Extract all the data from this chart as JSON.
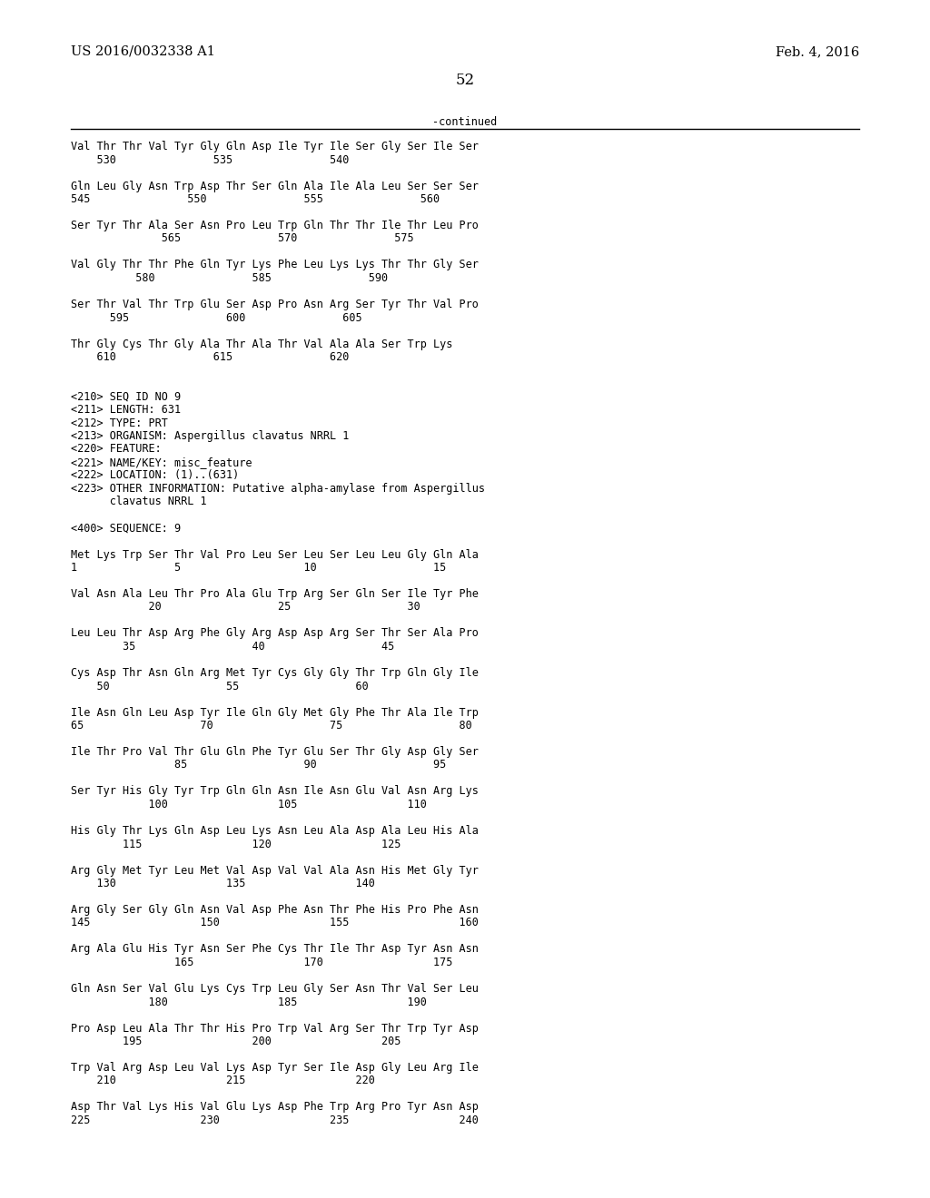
{
  "header_left": "US 2016/0032338 A1",
  "header_right": "Feb. 4, 2016",
  "page_number": "52",
  "continued_label": "-continued",
  "background_color": "#ffffff",
  "text_color": "#000000",
  "font_size_header": 10.5,
  "font_size_body": 8.5,
  "font_size_page": 12,
  "lines": [
    "Val Thr Thr Val Tyr Gly Gln Asp Ile Tyr Ile Ser Gly Ser Ile Ser",
    "    530               535               540",
    "",
    "Gln Leu Gly Asn Trp Asp Thr Ser Gln Ala Ile Ala Leu Ser Ser Ser",
    "545               550               555               560",
    "",
    "Ser Tyr Thr Ala Ser Asn Pro Leu Trp Gln Thr Thr Ile Thr Leu Pro",
    "              565               570               575",
    "",
    "Val Gly Thr Thr Phe Gln Tyr Lys Phe Leu Lys Lys Thr Thr Gly Ser",
    "          580               585               590",
    "",
    "Ser Thr Val Thr Trp Glu Ser Asp Pro Asn Arg Ser Tyr Thr Val Pro",
    "      595               600               605",
    "",
    "Thr Gly Cys Thr Gly Ala Thr Ala Thr Val Ala Ala Ser Trp Lys",
    "    610               615               620",
    "",
    "",
    "<210> SEQ ID NO 9",
    "<211> LENGTH: 631",
    "<212> TYPE: PRT",
    "<213> ORGANISM: Aspergillus clavatus NRRL 1",
    "<220> FEATURE:",
    "<221> NAME/KEY: misc_feature",
    "<222> LOCATION: (1)..(631)",
    "<223> OTHER INFORMATION: Putative alpha-amylase from Aspergillus",
    "      clavatus NRRL 1",
    "",
    "<400> SEQUENCE: 9",
    "",
    "Met Lys Trp Ser Thr Val Pro Leu Ser Leu Ser Leu Leu Gly Gln Ala",
    "1               5                   10                  15",
    "",
    "Val Asn Ala Leu Thr Pro Ala Glu Trp Arg Ser Gln Ser Ile Tyr Phe",
    "            20                  25                  30",
    "",
    "Leu Leu Thr Asp Arg Phe Gly Arg Asp Asp Arg Ser Thr Ser Ala Pro",
    "        35                  40                  45",
    "",
    "Cys Asp Thr Asn Gln Arg Met Tyr Cys Gly Gly Thr Trp Gln Gly Ile",
    "    50                  55                  60",
    "",
    "Ile Asn Gln Leu Asp Tyr Ile Gln Gly Met Gly Phe Thr Ala Ile Trp",
    "65                  70                  75                  80",
    "",
    "Ile Thr Pro Val Thr Glu Gln Phe Tyr Glu Ser Thr Gly Asp Gly Ser",
    "                85                  90                  95",
    "",
    "Ser Tyr His Gly Tyr Trp Gln Gln Asn Ile Asn Glu Val Asn Arg Lys",
    "            100                 105                 110",
    "",
    "His Gly Thr Lys Gln Asp Leu Lys Asn Leu Ala Asp Ala Leu His Ala",
    "        115                 120                 125",
    "",
    "Arg Gly Met Tyr Leu Met Val Asp Val Val Ala Asn His Met Gly Tyr",
    "    130                 135                 140",
    "",
    "Arg Gly Ser Gly Gln Asn Val Asp Phe Asn Thr Phe His Pro Phe Asn",
    "145                 150                 155                 160",
    "",
    "Arg Ala Glu His Tyr Asn Ser Phe Cys Thr Ile Thr Asp Tyr Asn Asn",
    "                165                 170                 175",
    "",
    "Gln Asn Ser Val Glu Lys Cys Trp Leu Gly Ser Asn Thr Val Ser Leu",
    "            180                 185                 190",
    "",
    "Pro Asp Leu Ala Thr Thr His Pro Trp Val Arg Ser Thr Trp Tyr Asp",
    "        195                 200                 205",
    "",
    "Trp Val Arg Asp Leu Val Lys Asp Tyr Ser Ile Asp Gly Leu Arg Ile",
    "    210                 215                 220",
    "",
    "Asp Thr Val Lys His Val Glu Lys Asp Phe Trp Arg Pro Tyr Asn Asp",
    "225                 230                 235                 240"
  ]
}
